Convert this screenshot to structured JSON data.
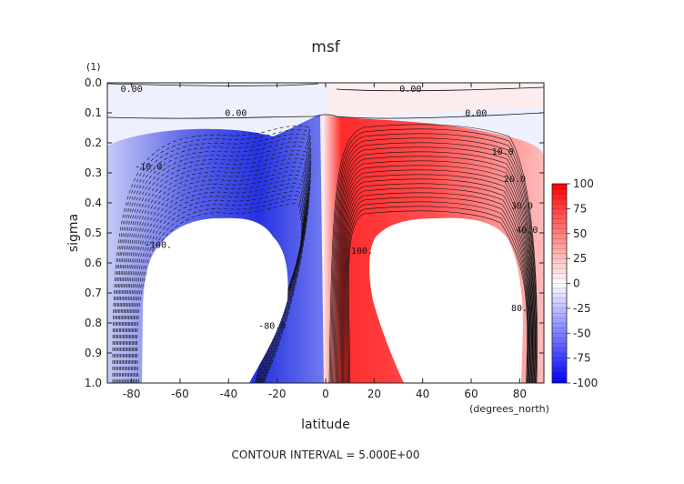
{
  "chart_data": {
    "type": "heatmap",
    "title": "msf",
    "xlabel": "latitude",
    "ylabel": "sigma",
    "y_units": "(1)",
    "x_units": "(degrees_north)",
    "xlim": [
      -90,
      90
    ],
    "ylim": [
      1.0,
      0.0
    ],
    "x_ticks": [
      -80,
      -60,
      -40,
      -20,
      0,
      20,
      40,
      60,
      80
    ],
    "x_tick_labels": [
      "-80",
      "-60",
      "-40",
      "-20",
      "0",
      "20",
      "40",
      "60",
      "80"
    ],
    "y_ticks": [
      0.0,
      0.1,
      0.2,
      0.3,
      0.4,
      0.5,
      0.6,
      0.7,
      0.8,
      0.9,
      1.0
    ],
    "y_tick_labels": [
      "0.0",
      "0.1",
      "0.2",
      "0.3",
      "0.4",
      "0.5",
      "0.6",
      "0.7",
      "0.8",
      "0.9",
      "1.0"
    ],
    "colorbar": {
      "ticks": [
        100,
        75,
        50,
        25,
        0,
        -25,
        -50,
        -75,
        -100
      ],
      "labels": [
        "100",
        "75",
        "50",
        "25",
        "0",
        "-25",
        "-50",
        "-75",
        "-100"
      ],
      "colors": [
        "#ffffff",
        "#ff0000",
        "#0000ff"
      ]
    },
    "contour_labels": [
      {
        "text": "0.00",
        "x": -80,
        "y": 0.03
      },
      {
        "text": "0.00",
        "x": 35,
        "y": 0.03
      },
      {
        "text": "0.00",
        "x": -37,
        "y": 0.11
      },
      {
        "text": "0.00",
        "x": 62,
        "y": 0.11
      },
      {
        "text": "-10.0",
        "x": -73,
        "y": 0.29
      },
      {
        "text": "10.0",
        "x": 73,
        "y": 0.24
      },
      {
        "text": "20.0",
        "x": 78,
        "y": 0.33
      },
      {
        "text": "30.0",
        "x": 81,
        "y": 0.42
      },
      {
        "text": "40.0",
        "x": 83,
        "y": 0.5
      },
      {
        "text": "-100.",
        "x": -69,
        "y": 0.55
      },
      {
        "text": "100.",
        "x": 15,
        "y": 0.57
      },
      {
        "text": "-80.0",
        "x": -22,
        "y": 0.82
      },
      {
        "text": "80.0",
        "x": 81,
        "y": 0.76
      }
    ],
    "mask_regions": [
      {
        "name": "southern-topography",
        "lat": [
          -78,
          -33
        ]
      },
      {
        "name": "northern-topography",
        "lat": [
          32,
          75
        ]
      }
    ],
    "footer": "CONTOUR INTERVAL = 5.000E+00"
  }
}
